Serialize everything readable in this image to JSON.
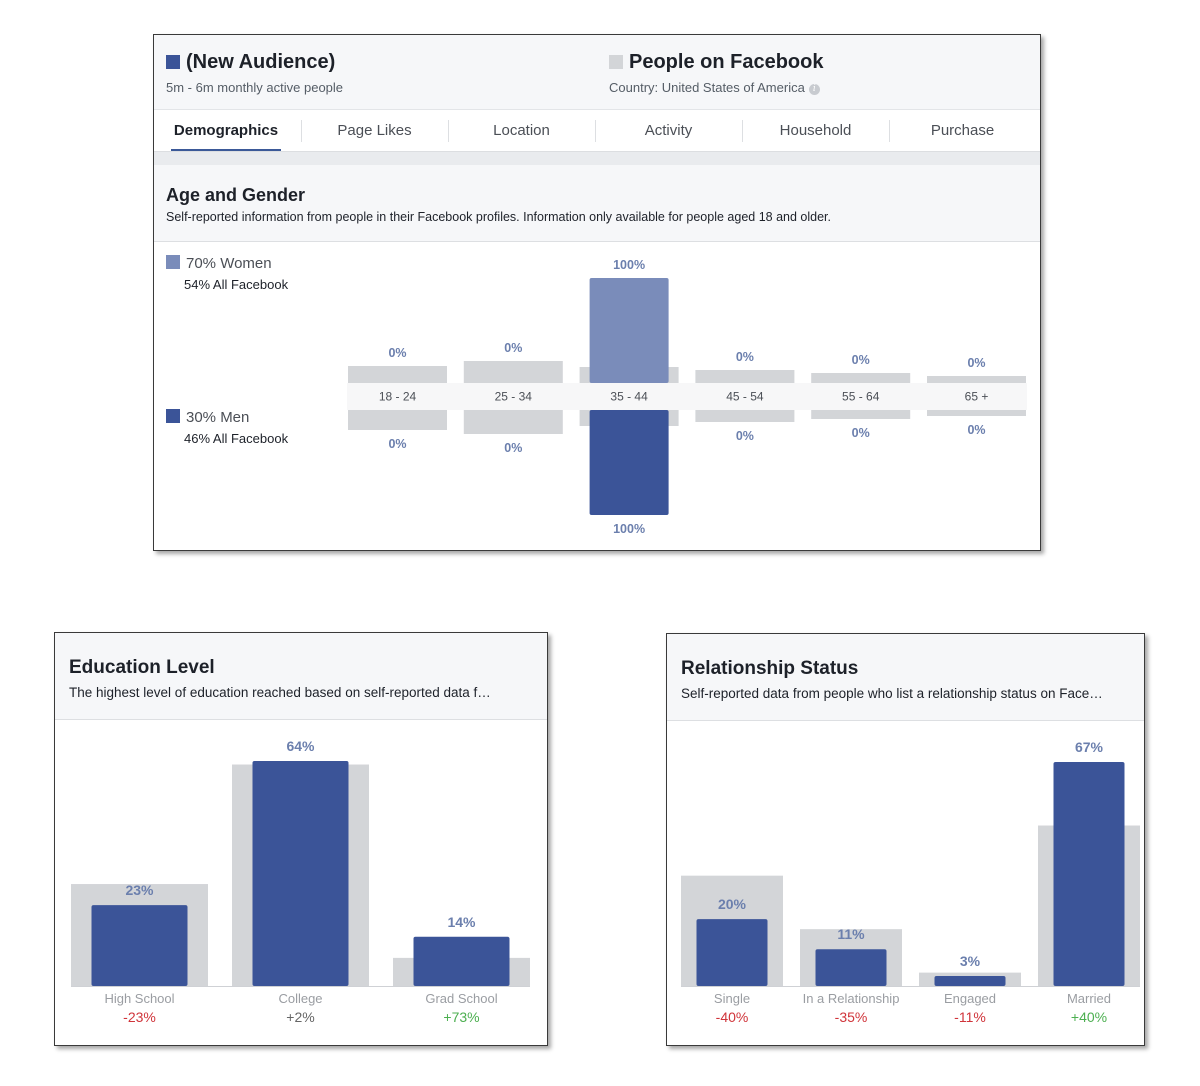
{
  "colors": {
    "audience": "#3b5498",
    "women": "#7a8cba",
    "men": "#3b5498",
    "baseline": "#d3d5d8",
    "value_label": "#6b7fad",
    "negative": "#d0343a",
    "positive": "#4caf50",
    "neutral": "#666666"
  },
  "audience": {
    "selected": {
      "name": "(New Audience)",
      "subtitle": "5m - 6m monthly active people"
    },
    "compare": {
      "name": "People on Facebook",
      "subtitle": "Country: United States of America"
    }
  },
  "tabs": [
    {
      "label": "Demographics",
      "active": true
    },
    {
      "label": "Page Likes"
    },
    {
      "label": "Location"
    },
    {
      "label": "Activity"
    },
    {
      "label": "Household"
    },
    {
      "label": "Purchase"
    }
  ],
  "age_gender": {
    "title": "Age and Gender",
    "description": "Self-reported information from people in their Facebook profiles. Information only available for people aged 18 and older.",
    "women_label": "70% Women",
    "women_sub": "54% All Facebook",
    "men_label": "30% Men",
    "men_sub": "46% All Facebook"
  },
  "education": {
    "title": "Education Level",
    "description": "The highest level of education reached based on self-reported data f…"
  },
  "relationship": {
    "title": "Relationship Status",
    "description": "Self-reported data from people who list a relationship status on Face…"
  },
  "chart_data": [
    {
      "type": "bar",
      "id": "age_gender",
      "categories": [
        "18 - 24",
        "25 - 34",
        "35 - 44",
        "45 - 54",
        "55 - 64",
        "65 +"
      ],
      "series": [
        {
          "name": "Women",
          "values": [
            0,
            0,
            100,
            0,
            0,
            0
          ],
          "value_labels": [
            "0%",
            "0%",
            "100%",
            "0%",
            "0%",
            "0%"
          ],
          "baseline": [
            17,
            22,
            16,
            13,
            10,
            7
          ]
        },
        {
          "name": "Men",
          "values": [
            0,
            0,
            100,
            0,
            0,
            0
          ],
          "value_labels": [
            "0%",
            "0%",
            "100%",
            "0%",
            "0%",
            "0%"
          ],
          "baseline": [
            20,
            24,
            16,
            12,
            9,
            6
          ]
        }
      ],
      "ylim": [
        0,
        100
      ]
    },
    {
      "type": "bar",
      "id": "education",
      "categories": [
        "High School",
        "College",
        "Grad School"
      ],
      "values": [
        23,
        64,
        14
      ],
      "value_labels": [
        "23%",
        "64%",
        "14%"
      ],
      "baseline": [
        29,
        63,
        8
      ],
      "comparison": [
        "-23%",
        "+2%",
        "+73%"
      ],
      "ylim": [
        0,
        64
      ]
    },
    {
      "type": "bar",
      "id": "relationship",
      "categories": [
        "Single",
        "In a Relationship",
        "Engaged",
        "Married"
      ],
      "values": [
        20,
        11,
        3,
        67
      ],
      "value_labels": [
        "20%",
        "11%",
        "3%",
        "67%"
      ],
      "baseline": [
        33,
        17,
        4,
        48
      ],
      "comparison": [
        "-40%",
        "-35%",
        "-11%",
        "+40%"
      ],
      "ylim": [
        0,
        67
      ]
    }
  ]
}
